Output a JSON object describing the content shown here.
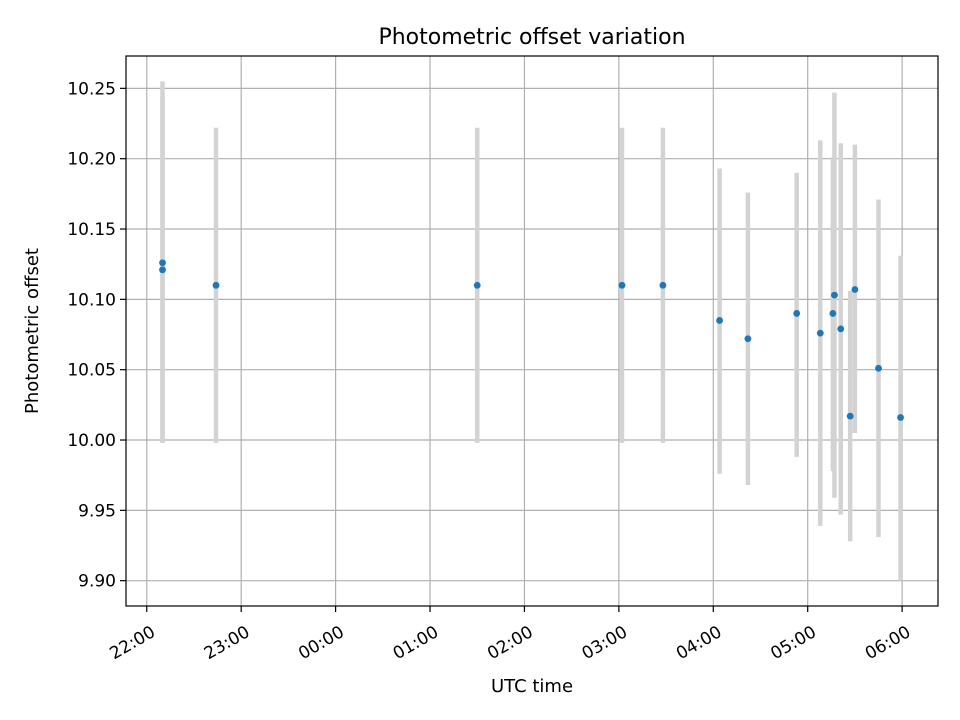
{
  "chart_data": {
    "type": "scatter",
    "title": "Photometric offset variation",
    "xlabel": "UTC time",
    "ylabel": "Photometric offset",
    "x_axis": "time (hours after 22:00 UTC)",
    "xlim": [
      -0.22,
      8.38
    ],
    "ylim": [
      9.882,
      10.273
    ],
    "x_ticks": [
      {
        "value": 0,
        "label": "22:00"
      },
      {
        "value": 1,
        "label": "23:00"
      },
      {
        "value": 2,
        "label": "00:00"
      },
      {
        "value": 3,
        "label": "01:00"
      },
      {
        "value": 4,
        "label": "02:00"
      },
      {
        "value": 5,
        "label": "03:00"
      },
      {
        "value": 6,
        "label": "04:00"
      },
      {
        "value": 7,
        "label": "05:00"
      },
      {
        "value": 8,
        "label": "06:00"
      }
    ],
    "y_ticks": [
      {
        "value": 9.9,
        "label": "9.90"
      },
      {
        "value": 9.95,
        "label": "9.95"
      },
      {
        "value": 10.0,
        "label": "10.00"
      },
      {
        "value": 10.05,
        "label": "10.05"
      },
      {
        "value": 10.1,
        "label": "10.10"
      },
      {
        "value": 10.15,
        "label": "10.15"
      },
      {
        "value": 10.2,
        "label": "10.20"
      },
      {
        "value": 10.25,
        "label": "10.25"
      }
    ],
    "grid": true,
    "point_color": "#1f77b4",
    "errorbar_color": "#d3d3d3",
    "points": [
      {
        "time": "22:10",
        "y": 10.126,
        "y_low": 9.998,
        "y_high": 10.255
      },
      {
        "time": "22:10",
        "y": 10.121,
        "y_low": 9.998,
        "y_high": 10.244
      },
      {
        "time": "22:44",
        "y": 10.11,
        "y_low": 9.998,
        "y_high": 10.222
      },
      {
        "time": "01:30",
        "y": 10.11,
        "y_low": 9.998,
        "y_high": 10.222
      },
      {
        "time": "03:02",
        "y": 10.11,
        "y_low": 9.998,
        "y_high": 10.222
      },
      {
        "time": "03:28",
        "y": 10.11,
        "y_low": 9.998,
        "y_high": 10.222
      },
      {
        "time": "04:04",
        "y": 10.085,
        "y_low": 9.976,
        "y_high": 10.193
      },
      {
        "time": "04:22",
        "y": 10.072,
        "y_low": 9.968,
        "y_high": 10.176
      },
      {
        "time": "04:53",
        "y": 10.09,
        "y_low": 9.988,
        "y_high": 10.19
      },
      {
        "time": "05:08",
        "y": 10.076,
        "y_low": 9.939,
        "y_high": 10.213
      },
      {
        "time": "05:16",
        "y": 10.09,
        "y_low": 9.978,
        "y_high": 10.201
      },
      {
        "time": "05:17",
        "y": 10.103,
        "y_low": 9.959,
        "y_high": 10.247
      },
      {
        "time": "05:21",
        "y": 10.079,
        "y_low": 9.947,
        "y_high": 10.211
      },
      {
        "time": "05:27",
        "y": 10.017,
        "y_low": 9.928,
        "y_high": 10.106
      },
      {
        "time": "05:30",
        "y": 10.107,
        "y_low": 10.005,
        "y_high": 10.21
      },
      {
        "time": "05:45",
        "y": 10.051,
        "y_low": 9.931,
        "y_high": 10.171
      },
      {
        "time": "05:59",
        "y": 10.016,
        "y_low": 9.9,
        "y_high": 10.131
      }
    ]
  }
}
